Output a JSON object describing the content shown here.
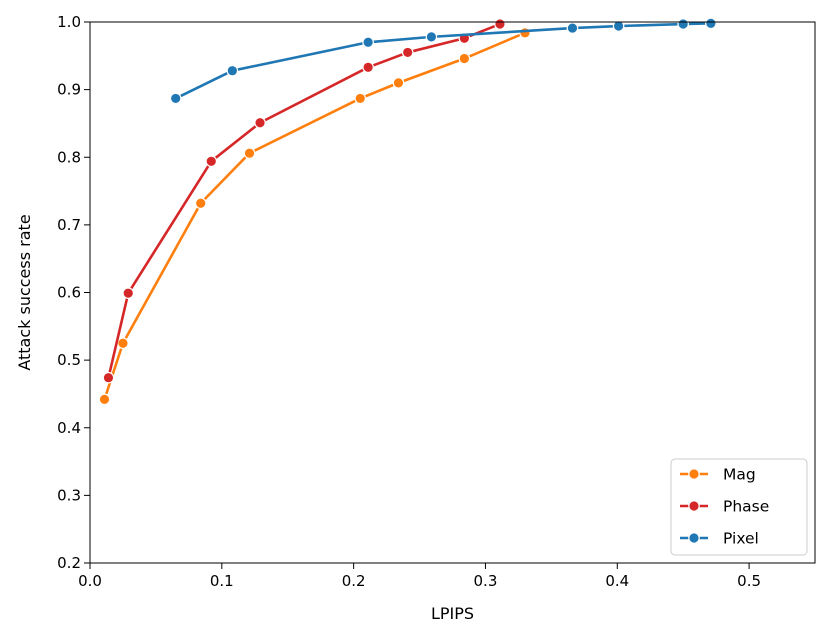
{
  "chart_data": {
    "type": "line",
    "xlabel": "LPIPS",
    "ylabel": "Attack success rate",
    "xlim": [
      0.0,
      0.55
    ],
    "ylim": [
      0.2,
      1.0
    ],
    "xticks": [
      "0.0",
      "0.1",
      "0.2",
      "0.3",
      "0.4",
      "0.5"
    ],
    "yticks": [
      "0.2",
      "0.3",
      "0.4",
      "0.5",
      "0.6",
      "0.7",
      "0.8",
      "0.9",
      "1.0"
    ],
    "grid": false,
    "legend_position": "bottom-right",
    "series": [
      {
        "name": "Mag",
        "color": "#ff7f0e",
        "points": [
          [
            0.011,
            0.442
          ],
          [
            0.025,
            0.525
          ],
          [
            0.084,
            0.732
          ],
          [
            0.121,
            0.806
          ],
          [
            0.205,
            0.887
          ],
          [
            0.234,
            0.91
          ],
          [
            0.284,
            0.946
          ],
          [
            0.33,
            0.984
          ]
        ]
      },
      {
        "name": "Phase",
        "color": "#d62728",
        "points": [
          [
            0.014,
            0.474
          ],
          [
            0.029,
            0.599
          ],
          [
            0.092,
            0.794
          ],
          [
            0.129,
            0.851
          ],
          [
            0.211,
            0.933
          ],
          [
            0.241,
            0.955
          ],
          [
            0.284,
            0.976
          ],
          [
            0.311,
            0.997
          ]
        ]
      },
      {
        "name": "Pixel",
        "color": "#1f77b4",
        "points": [
          [
            0.065,
            0.887
          ],
          [
            0.108,
            0.928
          ],
          [
            0.211,
            0.97
          ],
          [
            0.259,
            0.978
          ],
          [
            0.366,
            0.991
          ],
          [
            0.401,
            0.994
          ],
          [
            0.45,
            0.997
          ],
          [
            0.471,
            0.998
          ]
        ]
      }
    ]
  }
}
